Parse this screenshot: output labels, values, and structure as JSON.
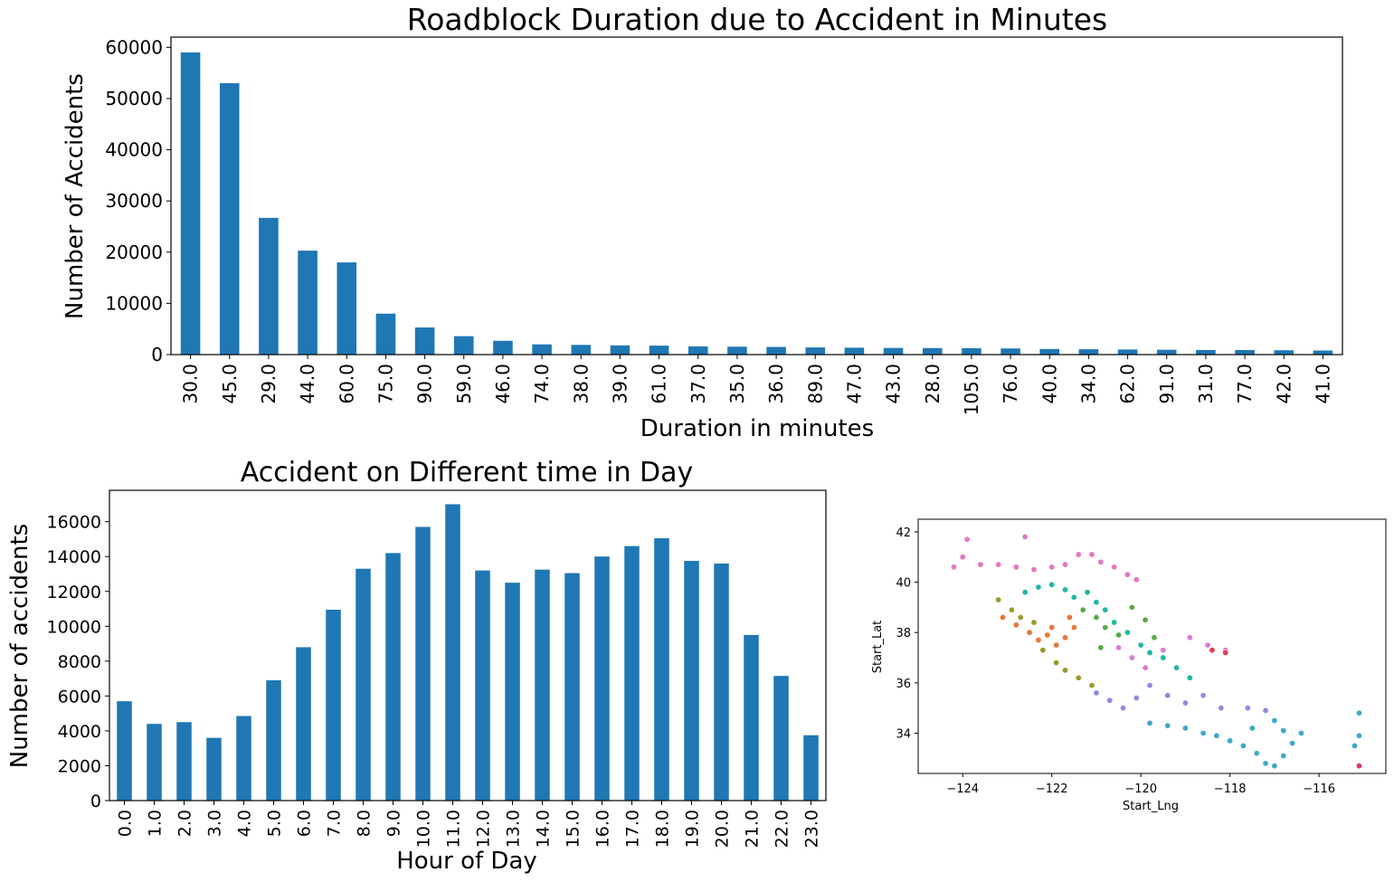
{
  "chart_data": [
    {
      "type": "bar",
      "title": "Roadblock Duration due to Accident in Minutes",
      "xlabel": "Duration in minutes",
      "ylabel": "Number of Accidents",
      "ylim": [
        0,
        62000
      ],
      "yticks": [
        0,
        10000,
        20000,
        30000,
        40000,
        50000,
        60000
      ],
      "color": "#1f77b4",
      "categories": [
        "30.0",
        "45.0",
        "29.0",
        "44.0",
        "60.0",
        "75.0",
        "90.0",
        "59.0",
        "46.0",
        "74.0",
        "38.0",
        "39.0",
        "61.0",
        "37.0",
        "35.0",
        "36.0",
        "89.0",
        "47.0",
        "43.0",
        "28.0",
        "105.0",
        "76.0",
        "40.0",
        "34.0",
        "62.0",
        "91.0",
        "31.0",
        "77.0",
        "42.0",
        "41.0"
      ],
      "values": [
        59000,
        53000,
        26700,
        20300,
        18000,
        8000,
        5300,
        3600,
        2700,
        2000,
        1900,
        1800,
        1750,
        1600,
        1550,
        1500,
        1400,
        1350,
        1300,
        1280,
        1250,
        1200,
        1100,
        1050,
        1000,
        950,
        900,
        900,
        850,
        800
      ]
    },
    {
      "type": "bar",
      "title": "Accident on Different time in Day",
      "xlabel": "Hour of Day",
      "ylabel": "Number of accidents",
      "ylim": [
        0,
        17800
      ],
      "yticks": [
        0,
        2000,
        4000,
        6000,
        8000,
        10000,
        12000,
        14000,
        16000
      ],
      "color": "#1f77b4",
      "categories": [
        "0.0",
        "1.0",
        "2.0",
        "3.0",
        "4.0",
        "5.0",
        "6.0",
        "7.0",
        "8.0",
        "9.0",
        "10.0",
        "11.0",
        "12.0",
        "13.0",
        "14.0",
        "15.0",
        "16.0",
        "17.0",
        "18.0",
        "19.0",
        "20.0",
        "21.0",
        "22.0",
        "23.0"
      ],
      "values": [
        5700,
        4400,
        4500,
        3600,
        4850,
        6900,
        8800,
        10950,
        13300,
        14200,
        15700,
        17000,
        13200,
        12500,
        13250,
        13050,
        14000,
        14600,
        15050,
        13750,
        13600,
        9500,
        7150,
        3750
      ]
    },
    {
      "type": "scatter",
      "title": "",
      "xlabel": "Start_Lng",
      "ylabel": "Start_Lat",
      "xlim": [
        -125,
        -114.5
      ],
      "ylim": [
        32.4,
        42.5
      ],
      "xticks": [
        -124,
        -122,
        -120,
        -118,
        -116
      ],
      "yticks": [
        34,
        36,
        38,
        40,
        42
      ],
      "clusters": [
        {
          "color": "#e377c2",
          "points": [
            [
              -124.2,
              40.6
            ],
            [
              -124.0,
              41.0
            ],
            [
              -123.9,
              41.7
            ],
            [
              -123.6,
              40.7
            ],
            [
              -123.2,
              40.7
            ],
            [
              -122.8,
              40.6
            ],
            [
              -122.6,
              41.8
            ],
            [
              -122.4,
              40.5
            ],
            [
              -122.0,
              40.6
            ],
            [
              -121.7,
              40.7
            ],
            [
              -121.4,
              41.1
            ],
            [
              -121.1,
              41.1
            ],
            [
              -120.9,
              40.8
            ],
            [
              -120.6,
              40.6
            ],
            [
              -120.3,
              40.3
            ],
            [
              -120.1,
              40.1
            ]
          ]
        },
        {
          "color": "#1fb7a4",
          "points": [
            [
              -122.6,
              39.6
            ],
            [
              -122.3,
              39.8
            ],
            [
              -122.0,
              39.9
            ],
            [
              -121.7,
              39.7
            ],
            [
              -121.5,
              39.4
            ],
            [
              -121.2,
              39.6
            ],
            [
              -121.0,
              39.2
            ],
            [
              -120.8,
              38.9
            ],
            [
              -120.6,
              38.4
            ],
            [
              -120.3,
              38.0
            ],
            [
              -120.0,
              37.5
            ],
            [
              -119.8,
              37.2
            ],
            [
              -119.5,
              37.0
            ],
            [
              -119.2,
              36.6
            ],
            [
              -118.9,
              36.2
            ]
          ]
        },
        {
          "color": "#e8763a",
          "points": [
            [
              -123.1,
              38.6
            ],
            [
              -122.8,
              38.3
            ],
            [
              -122.5,
              38.0
            ],
            [
              -122.3,
              37.7
            ],
            [
              -122.1,
              37.9
            ],
            [
              -121.9,
              37.5
            ],
            [
              -121.7,
              37.8
            ],
            [
              -121.5,
              38.2
            ],
            [
              -122.0,
              38.2
            ],
            [
              -121.6,
              38.6
            ]
          ]
        },
        {
          "color": "#9a9a2a",
          "points": [
            [
              -123.2,
              39.3
            ],
            [
              -122.9,
              38.9
            ],
            [
              -122.7,
              38.6
            ],
            [
              -122.4,
              38.4
            ],
            [
              -122.2,
              37.3
            ],
            [
              -121.9,
              36.8
            ],
            [
              -121.7,
              36.5
            ],
            [
              -121.4,
              36.2
            ],
            [
              -121.1,
              35.9
            ]
          ]
        },
        {
          "color": "#59a84b",
          "points": [
            [
              -121.3,
              38.9
            ],
            [
              -121.0,
              38.6
            ],
            [
              -120.8,
              38.2
            ],
            [
              -120.5,
              37.9
            ],
            [
              -120.2,
              39.0
            ],
            [
              -119.9,
              38.5
            ],
            [
              -119.7,
              37.8
            ],
            [
              -120.9,
              37.4
            ]
          ]
        },
        {
          "color": "#da7bd8",
          "points": [
            [
              -120.5,
              37.4
            ],
            [
              -120.2,
              37.0
            ],
            [
              -119.9,
              36.6
            ],
            [
              -119.5,
              37.3
            ],
            [
              -118.9,
              37.8
            ],
            [
              -118.5,
              37.5
            ],
            [
              -118.1,
              37.3
            ]
          ]
        },
        {
          "color": "#8c8ce0",
          "points": [
            [
              -121.0,
              35.6
            ],
            [
              -120.7,
              35.3
            ],
            [
              -120.4,
              35.0
            ],
            [
              -120.1,
              35.4
            ],
            [
              -119.8,
              35.9
            ],
            [
              -119.4,
              35.5
            ],
            [
              -119.0,
              35.2
            ],
            [
              -118.6,
              35.5
            ],
            [
              -118.2,
              35.0
            ],
            [
              -117.6,
              35.0
            ],
            [
              -117.2,
              34.9
            ]
          ]
        },
        {
          "color": "#3fa8c6",
          "points": [
            [
              -119.8,
              34.4
            ],
            [
              -119.4,
              34.3
            ],
            [
              -119.0,
              34.2
            ],
            [
              -118.6,
              34.0
            ],
            [
              -118.3,
              33.9
            ],
            [
              -118.0,
              33.7
            ],
            [
              -117.7,
              33.5
            ],
            [
              -117.4,
              33.2
            ],
            [
              -117.2,
              32.8
            ],
            [
              -117.0,
              32.7
            ],
            [
              -116.8,
              33.1
            ],
            [
              -116.6,
              33.6
            ],
            [
              -116.4,
              34.0
            ],
            [
              -117.5,
              34.2
            ],
            [
              -117.0,
              34.5
            ],
            [
              -116.8,
              34.1
            ],
            [
              -115.1,
              34.8
            ],
            [
              -115.1,
              33.9
            ],
            [
              -115.2,
              33.5
            ]
          ]
        },
        {
          "color": "#e2395c",
          "points": [
            [
              -118.4,
              37.3
            ],
            [
              -118.1,
              37.2
            ],
            [
              -115.1,
              32.7
            ]
          ]
        }
      ]
    }
  ]
}
